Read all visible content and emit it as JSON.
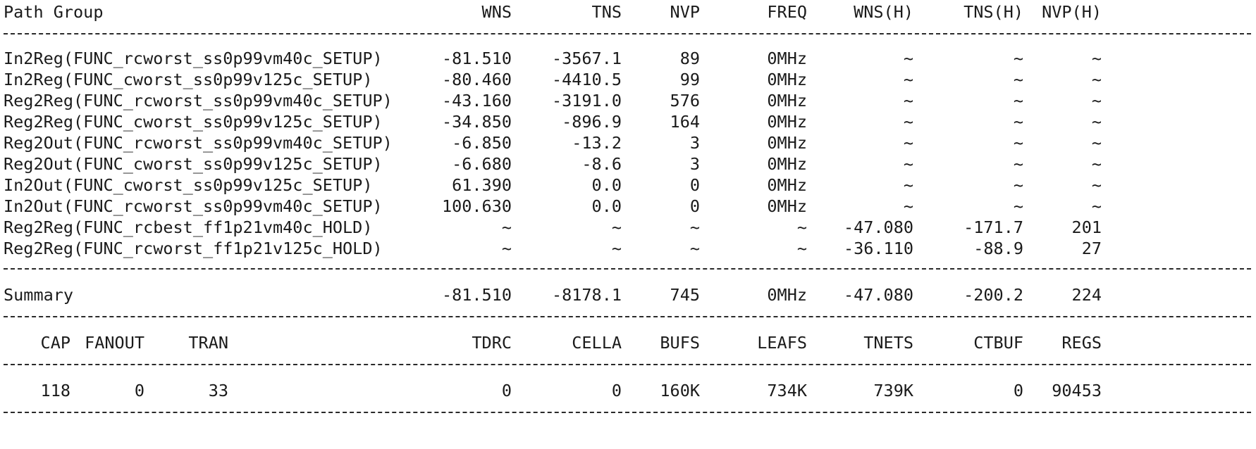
{
  "header": {
    "path_group": "Path Group",
    "wns": "WNS",
    "tns": "TNS",
    "nvp": "NVP",
    "freq": "FREQ",
    "wns_h": "WNS(H)",
    "tns_h": "TNS(H)",
    "nvp_h": "NVP(H)"
  },
  "rows": [
    {
      "name": "In2Reg(FUNC_rcworst_ss0p99vm40c_SETUP)",
      "wns": "-81.510",
      "tns": "-3567.1",
      "nvp": "89",
      "freq": "0MHz",
      "wns_h": "~",
      "tns_h": "~",
      "nvp_h": "~"
    },
    {
      "name": "In2Reg(FUNC_cworst_ss0p99v125c_SETUP)",
      "wns": "-80.460",
      "tns": "-4410.5",
      "nvp": "99",
      "freq": "0MHz",
      "wns_h": "~",
      "tns_h": "~",
      "nvp_h": "~"
    },
    {
      "name": "Reg2Reg(FUNC_rcworst_ss0p99vm40c_SETUP)",
      "wns": "-43.160",
      "tns": "-3191.0",
      "nvp": "576",
      "freq": "0MHz",
      "wns_h": "~",
      "tns_h": "~",
      "nvp_h": "~"
    },
    {
      "name": "Reg2Reg(FUNC_cworst_ss0p99v125c_SETUP)",
      "wns": "-34.850",
      "tns": "-896.9",
      "nvp": "164",
      "freq": "0MHz",
      "wns_h": "~",
      "tns_h": "~",
      "nvp_h": "~"
    },
    {
      "name": "Reg2Out(FUNC_rcworst_ss0p99vm40c_SETUP)",
      "wns": "-6.850",
      "tns": "-13.2",
      "nvp": "3",
      "freq": "0MHz",
      "wns_h": "~",
      "tns_h": "~",
      "nvp_h": "~"
    },
    {
      "name": "Reg2Out(FUNC_cworst_ss0p99v125c_SETUP)",
      "wns": "-6.680",
      "tns": "-8.6",
      "nvp": "3",
      "freq": "0MHz",
      "wns_h": "~",
      "tns_h": "~",
      "nvp_h": "~"
    },
    {
      "name": "In2Out(FUNC_cworst_ss0p99v125c_SETUP)",
      "wns": "61.390",
      "tns": "0.0",
      "nvp": "0",
      "freq": "0MHz",
      "wns_h": "~",
      "tns_h": "~",
      "nvp_h": "~"
    },
    {
      "name": "In2Out(FUNC_rcworst_ss0p99vm40c_SETUP)",
      "wns": "100.630",
      "tns": "0.0",
      "nvp": "0",
      "freq": "0MHz",
      "wns_h": "~",
      "tns_h": "~",
      "nvp_h": "~"
    },
    {
      "name": "Reg2Reg(FUNC_rcbest_ff1p21vm40c_HOLD)",
      "wns": "~",
      "tns": "~",
      "nvp": "~",
      "freq": "~",
      "wns_h": "-47.080",
      "tns_h": "-171.7",
      "nvp_h": "201"
    },
    {
      "name": "Reg2Reg(FUNC_rcworst_ff1p21v125c_HOLD)",
      "wns": "~",
      "tns": "~",
      "nvp": "~",
      "freq": "~",
      "wns_h": "-36.110",
      "tns_h": "-88.9",
      "nvp_h": "27"
    }
  ],
  "summary": {
    "label": "Summary",
    "wns": "-81.510",
    "tns": "-8178.1",
    "nvp": "745",
    "freq": "0MHz",
    "wns_h": "-47.080",
    "tns_h": "-200.2",
    "nvp_h": "224"
  },
  "stats_header": {
    "cap": "CAP",
    "fanout": "FANOUT",
    "tran": "TRAN",
    "tdrc": "TDRC",
    "cella": "CELLA",
    "bufs": "BUFS",
    "leafs": "LEAFS",
    "tnets": "TNETS",
    "ctbuf": "CTBUF",
    "regs": "REGS"
  },
  "stats": {
    "cap": "118",
    "fanout": "0",
    "tran": "33",
    "tdrc": "0",
    "cella": "0",
    "bufs": "160K",
    "leafs": "734K",
    "tnets": "739K",
    "ctbuf": "0",
    "regs": "90453"
  }
}
